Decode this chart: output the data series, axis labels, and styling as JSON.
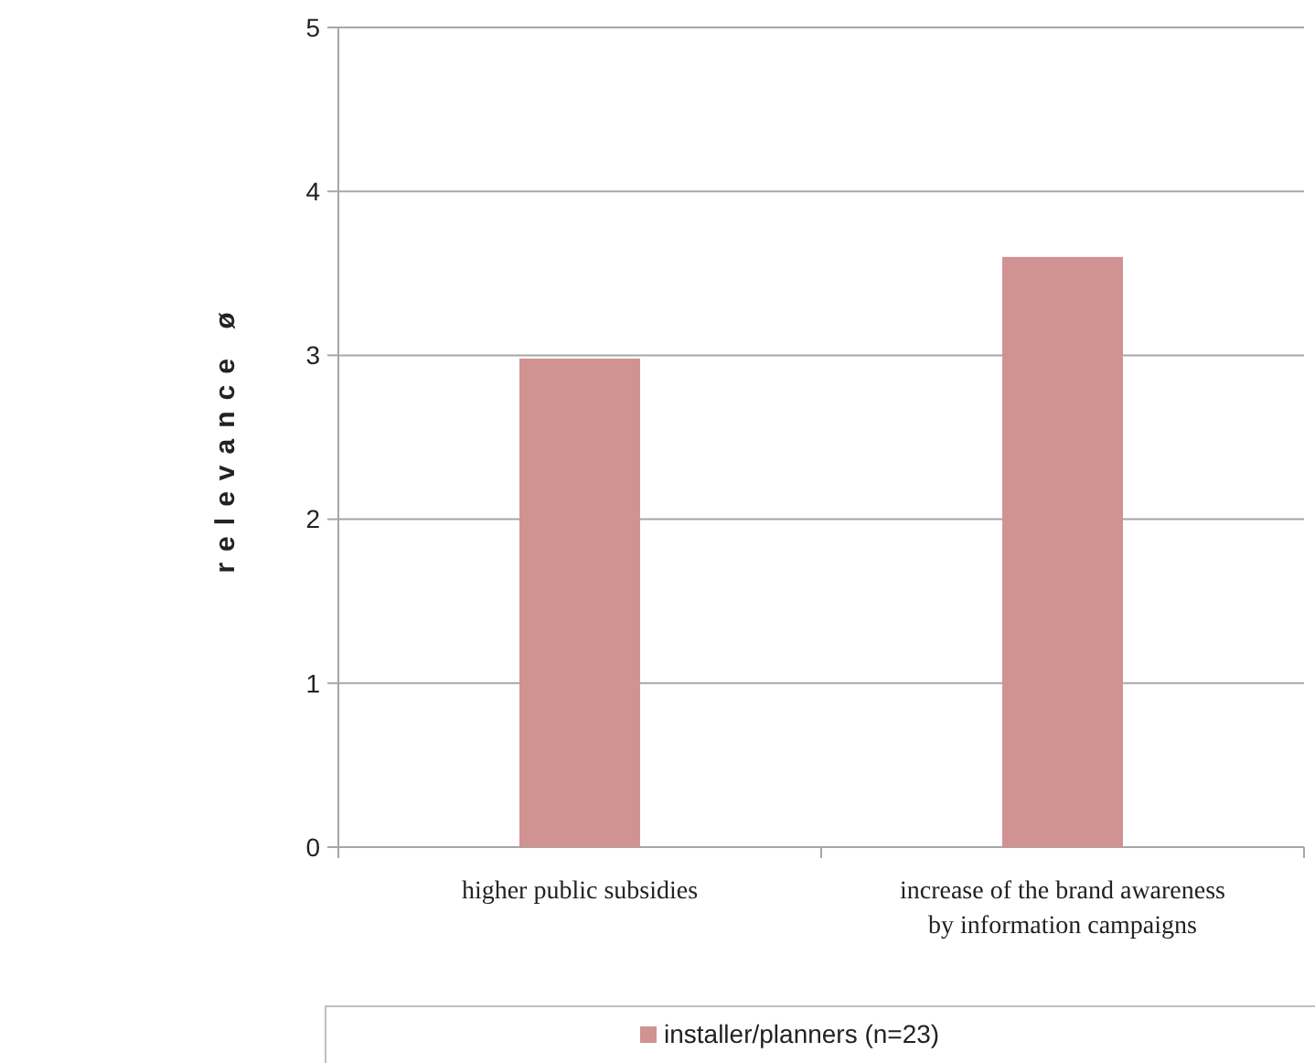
{
  "chart_data": {
    "type": "bar",
    "ylabel": "relevance ø",
    "categories": [
      "higher public subsidies",
      "increase of the brand awareness by information campaigns"
    ],
    "series": [
      {
        "name": "installer/planners (n=23)",
        "color": "#d09392",
        "values": [
          2.98,
          3.6
        ]
      }
    ],
    "ylim": [
      0,
      5
    ],
    "yticks": [
      0,
      1,
      2,
      3,
      4,
      5
    ],
    "grid": "y",
    "legend": "bottom"
  }
}
